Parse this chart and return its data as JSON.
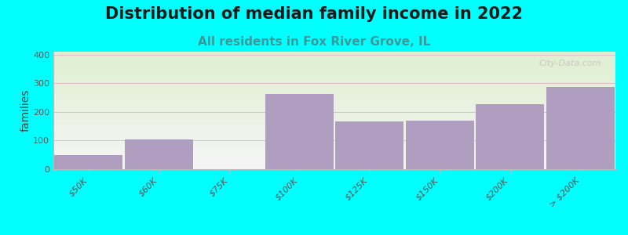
{
  "title": "Distribution of median family income in 2022",
  "subtitle": "All residents in Fox River Grove, IL",
  "ylabel": "families",
  "categories": [
    "$50K",
    "$60K",
    "$75K",
    "$100K",
    "$125K",
    "$150K",
    "$200K",
    "> $200K"
  ],
  "values": [
    50,
    103,
    0,
    262,
    168,
    170,
    228,
    288
  ],
  "bar_color": "#b09ec0",
  "ylim": [
    0,
    410
  ],
  "yticks": [
    0,
    100,
    200,
    300,
    400
  ],
  "background_outer": "#00ffff",
  "background_plot_top": "#dff0d0",
  "background_plot_bottom": "#f5f5f5",
  "title_fontsize": 15,
  "subtitle_fontsize": 11,
  "subtitle_color": "#3a9a9a",
  "ylabel_fontsize": 10,
  "tick_label_fontsize": 8,
  "watermark": "City-Data.com",
  "grid_color": "#e8b8c8",
  "axis_color": "#bbbbbb"
}
